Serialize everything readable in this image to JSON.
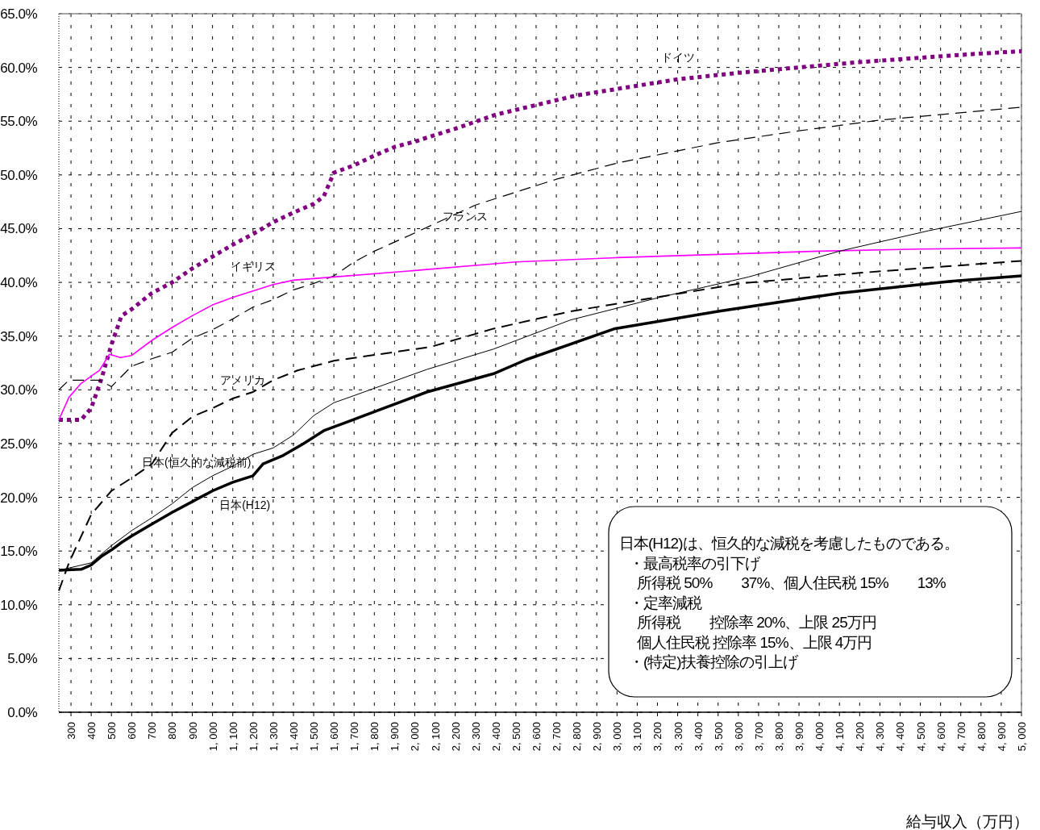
{
  "chart_data": {
    "type": "line",
    "xlabel": "給与収入（万円）",
    "xlim": [
      240,
      5000
    ],
    "ylim": [
      0,
      65
    ],
    "xticks": [
      300,
      400,
      500,
      600,
      700,
      800,
      900,
      {
        "value": 1000,
        "label": "1, 000"
      },
      {
        "value": 1100,
        "label": "1, 100"
      },
      {
        "value": 1200,
        "label": "1, 200"
      },
      {
        "value": 1300,
        "label": "1, 300"
      },
      {
        "value": 1400,
        "label": "1, 400"
      },
      {
        "value": 1500,
        "label": "1, 500"
      },
      {
        "value": 1600,
        "label": "1, 600"
      },
      {
        "value": 1700,
        "label": "1, 700"
      },
      {
        "value": 1800,
        "label": "1, 800"
      },
      {
        "value": 1900,
        "label": "1, 900"
      },
      {
        "value": 2000,
        "label": "2, 000"
      },
      {
        "value": 2100,
        "label": "2, 100"
      },
      {
        "value": 2200,
        "label": "2, 200"
      },
      {
        "value": 2300,
        "label": "2, 300"
      },
      {
        "value": 2400,
        "label": "2, 400"
      },
      {
        "value": 2500,
        "label": "2, 500"
      },
      {
        "value": 2600,
        "label": "2, 600"
      },
      {
        "value": 2700,
        "label": "2, 700"
      },
      {
        "value": 2800,
        "label": "2, 800"
      },
      {
        "value": 2900,
        "label": "2, 900"
      },
      {
        "value": 3000,
        "label": "3, 000"
      },
      {
        "value": 3100,
        "label": "3, 100"
      },
      {
        "value": 3200,
        "label": "3, 200"
      },
      {
        "value": 3300,
        "label": "3, 300"
      },
      {
        "value": 3400,
        "label": "3, 400"
      },
      {
        "value": 3500,
        "label": "3, 500"
      },
      {
        "value": 3600,
        "label": "3, 600"
      },
      {
        "value": 3700,
        "label": "3, 700"
      },
      {
        "value": 3800,
        "label": "3, 800"
      },
      {
        "value": 3900,
        "label": "3, 900"
      },
      {
        "value": 4000,
        "label": "4, 000"
      },
      {
        "value": 4100,
        "label": "4, 100"
      },
      {
        "value": 4200,
        "label": "4, 200"
      },
      {
        "value": 4300,
        "label": "4, 300"
      },
      {
        "value": 4400,
        "label": "4, 400"
      },
      {
        "value": 4500,
        "label": "4, 500"
      },
      {
        "value": 4600,
        "label": "4, 600"
      },
      {
        "value": 4700,
        "label": "4, 700"
      },
      {
        "value": 4800,
        "label": "4, 800"
      },
      {
        "value": 4900,
        "label": "4, 900"
      },
      {
        "value": 5000,
        "label": "5, 000"
      }
    ],
    "yticks": [
      {
        "value": 0,
        "label": "0.0%"
      },
      {
        "value": 5,
        "label": "5.0%"
      },
      {
        "value": 10,
        "label": "10.0%"
      },
      {
        "value": 15,
        "label": "15.0%"
      },
      {
        "value": 20,
        "label": "20.0%"
      },
      {
        "value": 25,
        "label": "25.0%"
      },
      {
        "value": 30,
        "label": "30.0%"
      },
      {
        "value": 35,
        "label": "35.0%"
      },
      {
        "value": 40,
        "label": "40.0%"
      },
      {
        "value": 45,
        "label": "45.0%"
      },
      {
        "value": 50,
        "label": "50.0%"
      },
      {
        "value": 55,
        "label": "55.0%"
      },
      {
        "value": 60,
        "label": "60.0%"
      },
      {
        "value": 65,
        "label": "65.0%"
      }
    ],
    "grid": true,
    "legend": false,
    "series": [
      {
        "name": "ドイツ",
        "color": "#800080",
        "line_style": "dotted",
        "x": [
          240,
          350,
          400,
          450,
          500,
          550,
          600,
          700,
          800,
          900,
          1000,
          1100,
          1200,
          1300,
          1400,
          1500,
          1550,
          1600,
          1700,
          1800,
          1900,
          2000,
          2200,
          2400,
          2600,
          2800,
          3000,
          3300,
          3600,
          3900,
          4200,
          4500,
          4800,
          5000
        ],
        "values": [
          27.2,
          27.2,
          28.3,
          31.0,
          34.2,
          36.9,
          37.5,
          39.0,
          40.0,
          41.3,
          42.4,
          43.5,
          44.5,
          45.6,
          46.5,
          47.3,
          48.0,
          50.2,
          50.9,
          51.8,
          52.6,
          53.1,
          54.3,
          55.6,
          56.5,
          57.4,
          58.0,
          58.9,
          59.5,
          60.0,
          60.5,
          60.9,
          61.3,
          61.5
        ]
      },
      {
        "name": "フランス",
        "color": "#000000",
        "line_style": "dashed",
        "x": [
          240,
          290,
          440,
          500,
          600,
          700,
          800,
          900,
          1000,
          1100,
          1200,
          1300,
          1400,
          1500,
          1600,
          1700,
          1800,
          2000,
          2300,
          2700,
          3000,
          3500,
          3900,
          4300,
          5000
        ],
        "values": [
          30.0,
          30.9,
          30.9,
          30.3,
          32.2,
          32.9,
          33.5,
          34.8,
          35.6,
          36.6,
          37.7,
          38.4,
          39.3,
          39.9,
          40.6,
          41.9,
          42.9,
          44.6,
          47.2,
          49.6,
          51.1,
          53.0,
          54.1,
          55.1,
          56.3
        ]
      },
      {
        "name": "イギリス",
        "color": "#ff00ff",
        "line_style": "solid",
        "x": [
          240,
          290,
          350,
          410,
          440,
          490,
          545,
          600,
          700,
          800,
          900,
          1000,
          1100,
          1200,
          1300,
          1400,
          1600,
          2000,
          2500,
          3000,
          3500,
          4000,
          4500,
          5000
        ],
        "values": [
          27.2,
          29.3,
          30.6,
          31.4,
          31.8,
          33.3,
          33.0,
          33.2,
          34.6,
          35.8,
          36.9,
          37.9,
          38.6,
          39.2,
          39.8,
          40.2,
          40.5,
          41.1,
          41.9,
          42.3,
          42.6,
          42.9,
          43.1,
          43.2
        ]
      },
      {
        "name": "アメリカ",
        "color": "#000000",
        "line_style": "dashed",
        "x": [
          240,
          290,
          400,
          500,
          600,
          700,
          800,
          900,
          1000,
          1100,
          1200,
          1300,
          1420,
          1600,
          2080,
          2390,
          2770,
          3320,
          3610,
          4210,
          5000
        ],
        "values": [
          11.3,
          13.9,
          18.4,
          20.6,
          21.8,
          23.1,
          26.0,
          27.5,
          28.3,
          29.2,
          29.8,
          30.9,
          31.8,
          32.7,
          34.0,
          35.7,
          37.3,
          39.0,
          39.9,
          40.9,
          42.0
        ]
      },
      {
        "name": "日本(恒久的な減税前)",
        "color": "#000000",
        "line_style": "solid",
        "x": [
          240,
          400,
          500,
          600,
          700,
          800,
          900,
          1000,
          1100,
          1200,
          1300,
          1400,
          1500,
          1600,
          1660,
          2060,
          2390,
          2770,
          3210,
          3650,
          4100,
          4540,
          5000
        ],
        "values": [
          13.2,
          13.9,
          15.5,
          16.9,
          18.1,
          19.4,
          20.9,
          22.0,
          22.9,
          24.0,
          24.6,
          25.8,
          27.6,
          28.8,
          29.2,
          31.9,
          33.8,
          36.5,
          38.6,
          40.5,
          42.9,
          44.8,
          46.6
        ]
      },
      {
        "name": "日本(H12)",
        "color": "#000000",
        "line_style": "solid",
        "x": [
          240,
          350,
          400,
          450,
          500,
          550,
          600,
          700,
          800,
          900,
          1000,
          1100,
          1200,
          1250,
          1350,
          1450,
          1550,
          1650,
          2060,
          2390,
          2550,
          2990,
          3500,
          4100,
          4650,
          5000
        ],
        "values": [
          13.2,
          13.3,
          13.7,
          14.5,
          15.1,
          15.8,
          16.4,
          17.5,
          18.6,
          19.6,
          20.6,
          21.4,
          22.0,
          23.1,
          23.9,
          25.0,
          26.2,
          26.9,
          29.8,
          31.5,
          32.8,
          35.7,
          37.3,
          39.0,
          40.1,
          40.6
        ]
      }
    ],
    "annotations": [
      "日本(H12)は、恒久的な減税を考慮したものである。",
      "・最高税率の引下げ",
      "所得税 50%　　37%、個人住民税 15%　　13%",
      "・定率減税",
      "所得税　　控除率 20%、上限 25万円",
      "個人住民税 控除率 15%、上限 4万円",
      "・(特定)扶養控除の引上げ"
    ]
  }
}
